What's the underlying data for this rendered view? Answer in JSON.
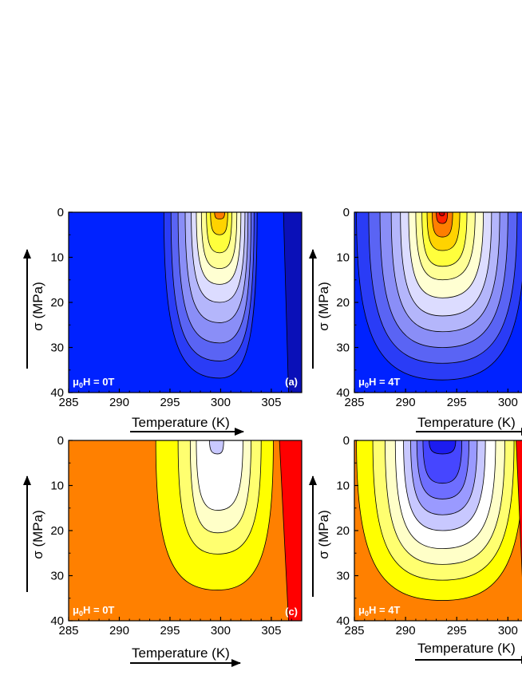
{
  "chart_data": [
    {
      "type": "heatmap",
      "panel_label": "(a)",
      "field_label": {
        "prefix": "μ",
        "sub": "0",
        "suffix": "H = 0T"
      },
      "xlabel": "Temperature (K)",
      "ylabel": "σ (MPa)",
      "xlim": [
        285,
        308
      ],
      "ylim": [
        0,
        40
      ],
      "y_inverted": true,
      "xticks": [
        285,
        290,
        295,
        300,
        305
      ],
      "yticks": [
        0,
        10,
        20,
        30,
        40
      ],
      "background_color": "#0022ff",
      "contours": [
        {
          "color": "#2a3cf6",
          "center_T": 299.9,
          "lo_T": 294.4,
          "hi_T": 303.6,
          "depth": 36.8
        },
        {
          "color": "#5a64f4",
          "center_T": 299.9,
          "lo_T": 295.1,
          "hi_T": 303.3,
          "depth": 33.0
        },
        {
          "color": "#8a8ef7",
          "center_T": 299.9,
          "lo_T": 295.8,
          "hi_T": 303.0,
          "depth": 29.0
        },
        {
          "color": "#b4b6fb",
          "center_T": 299.9,
          "lo_T": 296.5,
          "hi_T": 302.7,
          "depth": 24.5
        },
        {
          "color": "#dcdcff",
          "center_T": 299.9,
          "lo_T": 297.1,
          "hi_T": 302.4,
          "depth": 20.0
        },
        {
          "color": "#ffffd2",
          "center_T": 299.9,
          "lo_T": 297.6,
          "hi_T": 302.0,
          "depth": 16.0
        },
        {
          "color": "#ffff96",
          "center_T": 299.9,
          "lo_T": 298.1,
          "hi_T": 301.6,
          "depth": 12.5
        },
        {
          "color": "#ffff3c",
          "center_T": 299.9,
          "lo_T": 298.6,
          "hi_T": 301.1,
          "depth": 9.0
        },
        {
          "color": "#ffd300",
          "center_T": 299.9,
          "lo_T": 299.0,
          "hi_T": 300.7,
          "depth": 5.0
        },
        {
          "color": "#ff7e00",
          "center_T": 299.9,
          "lo_T": 299.4,
          "hi_T": 300.4,
          "depth": 1.5
        }
      ],
      "side_bands": [
        {
          "color": "#0a10b8",
          "top_T": 306.2,
          "bottom_T": 306.7,
          "to_T": 308
        }
      ]
    },
    {
      "type": "heatmap",
      "panel_label": "",
      "field_label": {
        "prefix": "μ",
        "sub": "0",
        "suffix": "H = 4T"
      },
      "xlabel": "Temperature (K)",
      "ylabel": "σ (MPa)",
      "xlim": [
        285,
        302
      ],
      "ylim": [
        0,
        40
      ],
      "y_inverted": true,
      "xticks": [
        285,
        290,
        295,
        300
      ],
      "yticks": [
        0,
        10,
        20,
        30,
        40
      ],
      "background_color": "#0022ff",
      "contours": [
        {
          "color": "#2a3cf6",
          "center_T": 293.6,
          "lo_T": 285.2,
          "hi_T": 301.7,
          "depth": 37.2
        },
        {
          "color": "#5a64f4",
          "center_T": 293.6,
          "lo_T": 286.4,
          "hi_T": 300.9,
          "depth": 33.5
        },
        {
          "color": "#8a8ef7",
          "center_T": 293.6,
          "lo_T": 287.5,
          "hi_T": 300.0,
          "depth": 30.0
        },
        {
          "color": "#b4b6fb",
          "center_T": 293.6,
          "lo_T": 288.6,
          "hi_T": 299.2,
          "depth": 26.5
        },
        {
          "color": "#dcdcff",
          "center_T": 293.6,
          "lo_T": 289.5,
          "hi_T": 298.4,
          "depth": 23.0
        },
        {
          "color": "#ffffd2",
          "center_T": 293.6,
          "lo_T": 290.3,
          "hi_T": 297.6,
          "depth": 19.0
        },
        {
          "color": "#ffff96",
          "center_T": 293.6,
          "lo_T": 291.0,
          "hi_T": 296.8,
          "depth": 15.0
        },
        {
          "color": "#ffff3c",
          "center_T": 293.6,
          "lo_T": 291.6,
          "hi_T": 296.0,
          "depth": 12.0
        },
        {
          "color": "#ffd300",
          "center_T": 293.6,
          "lo_T": 292.1,
          "hi_T": 295.3,
          "depth": 8.5
        },
        {
          "color": "#ff7e00",
          "center_T": 293.6,
          "lo_T": 292.6,
          "hi_T": 294.6,
          "depth": 5.5
        },
        {
          "color": "#ff2200",
          "center_T": 293.6,
          "lo_T": 293.0,
          "hi_T": 294.1,
          "depth": 2.5
        },
        {
          "color": "#cc0000",
          "center_T": 293.6,
          "lo_T": 293.3,
          "hi_T": 293.8,
          "depth": 0.8
        }
      ],
      "side_bands": [
        {
          "color": "#0a10b8",
          "top_T": 301.6,
          "bottom_T": 301.6,
          "to_T": 302
        }
      ]
    },
    {
      "type": "heatmap",
      "panel_label": "(c)",
      "field_label": {
        "prefix": "μ",
        "sub": "0",
        "suffix": "H = 0T"
      },
      "xlabel": "Temperature (K)",
      "ylabel": "σ (MPa)",
      "xlim": [
        285,
        308
      ],
      "ylim": [
        0,
        40
      ],
      "y_inverted": true,
      "xticks": [
        285,
        290,
        295,
        300,
        305
      ],
      "yticks": [
        0,
        10,
        20,
        30,
        40
      ],
      "background_color": "#ff8000",
      "contours": [
        {
          "color": "#ffff00",
          "center_T": 299.7,
          "lo_T": 293.6,
          "hi_T": 305.2,
          "depth": 33.2
        },
        {
          "color": "#ffff70",
          "center_T": 299.7,
          "lo_T": 295.8,
          "hi_T": 304.0,
          "depth": 25.2
        },
        {
          "color": "#ffffc8",
          "center_T": 299.7,
          "lo_T": 297.0,
          "hi_T": 303.0,
          "depth": 20.5
        },
        {
          "color": "#ffffff",
          "center_T": 299.7,
          "lo_T": 297.6,
          "hi_T": 302.2,
          "depth": 15.5
        },
        {
          "color": "#c8c8ff",
          "center_T": 299.7,
          "lo_T": 298.9,
          "hi_T": 300.3,
          "depth": 3.0
        }
      ],
      "side_bands": [
        {
          "color": "#ff0000",
          "top_T": 305.8,
          "bottom_T": 306.7,
          "to_T": 308
        }
      ]
    },
    {
      "type": "heatmap",
      "panel_label": "",
      "field_label": {
        "prefix": "μ",
        "sub": "0",
        "suffix": "H = 4T"
      },
      "xlabel": "Temperature (K)",
      "ylabel": "σ (MPa)",
      "xlim": [
        285,
        302
      ],
      "ylim": [
        0,
        40
      ],
      "y_inverted": true,
      "xticks": [
        285,
        290,
        295,
        300
      ],
      "yticks": [
        0,
        10,
        20,
        30,
        40
      ],
      "background_color": "#ff8000",
      "contours": [
        {
          "color": "#ffff00",
          "center_T": 293.6,
          "lo_T": 285.2,
          "hi_T": 301.6,
          "depth": 35.5
        },
        {
          "color": "#ffff70",
          "center_T": 293.6,
          "lo_T": 286.8,
          "hi_T": 300.6,
          "depth": 31.0
        },
        {
          "color": "#ffffc8",
          "center_T": 293.6,
          "lo_T": 288.0,
          "hi_T": 299.7,
          "depth": 27.5
        },
        {
          "color": "#ffffff",
          "center_T": 293.6,
          "lo_T": 289.0,
          "hi_T": 298.8,
          "depth": 24.0
        },
        {
          "color": "#c8c8ff",
          "center_T": 293.6,
          "lo_T": 289.8,
          "hi_T": 297.8,
          "depth": 20.0
        },
        {
          "color": "#9a9aff",
          "center_T": 293.6,
          "lo_T": 290.5,
          "hi_T": 297.0,
          "depth": 16.5
        },
        {
          "color": "#6e6eff",
          "center_T": 293.6,
          "lo_T": 291.1,
          "hi_T": 296.2,
          "depth": 13.0
        },
        {
          "color": "#4646ff",
          "center_T": 293.6,
          "lo_T": 291.7,
          "hi_T": 295.5,
          "depth": 9.5
        },
        {
          "color": "#1c1cf0",
          "center_T": 293.6,
          "lo_T": 292.3,
          "hi_T": 294.9,
          "depth": 3.0
        }
      ],
      "side_bands": [
        {
          "color": "#ff0000",
          "top_T": 300.8,
          "bottom_T": 301.6,
          "to_T": 302
        }
      ]
    }
  ]
}
